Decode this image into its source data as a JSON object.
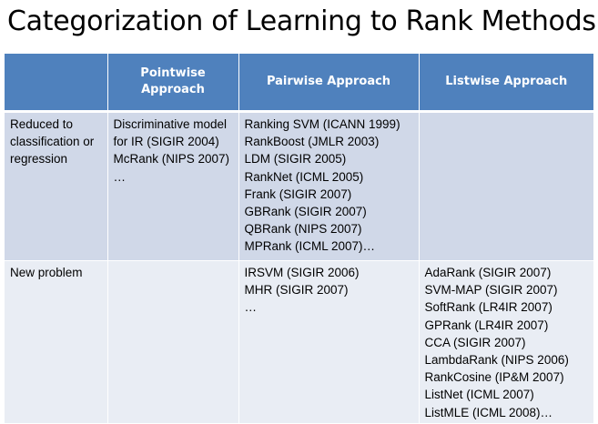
{
  "title": "Categorization of Learning to Rank Methods",
  "table": {
    "headers": [
      "",
      "Pointwise Approach",
      "Pairwise Approach",
      "Listwise Approach"
    ],
    "rows": [
      {
        "label": "Reduced to classification or regression",
        "pointwise": [
          "Discriminative model for IR (SIGIR 2004)",
          "McRank (NIPS 2007)",
          "…"
        ],
        "pairwise": [
          "Ranking SVM (ICANN 1999)",
          "RankBoost (JMLR 2003)",
          "LDM (SIGIR 2005)",
          "RankNet (ICML 2005)",
          "Frank (SIGIR 2007)",
          "GBRank (SIGIR 2007)",
          "QBRank (NIPS 2007)",
          "MPRank (ICML 2007)…"
        ],
        "listwise": []
      },
      {
        "label": "New problem",
        "pointwise": [],
        "pairwise": [
          "IRSVM (SIGIR 2006)",
          "MHR (SIGIR 2007)",
          "…"
        ],
        "listwise": [
          "AdaRank (SIGIR 2007)",
          "SVM-MAP (SIGIR 2007)",
          "SoftRank (LR4IR 2007)",
          "GPRank (LR4IR 2007)",
          "CCA (SIGIR 2007)",
          "LambdaRank (NIPS 2006)",
          "RankCosine (IP&M 2007)",
          "ListNet (ICML 2007)",
          "ListMLE (ICML 2008)…"
        ]
      }
    ]
  }
}
